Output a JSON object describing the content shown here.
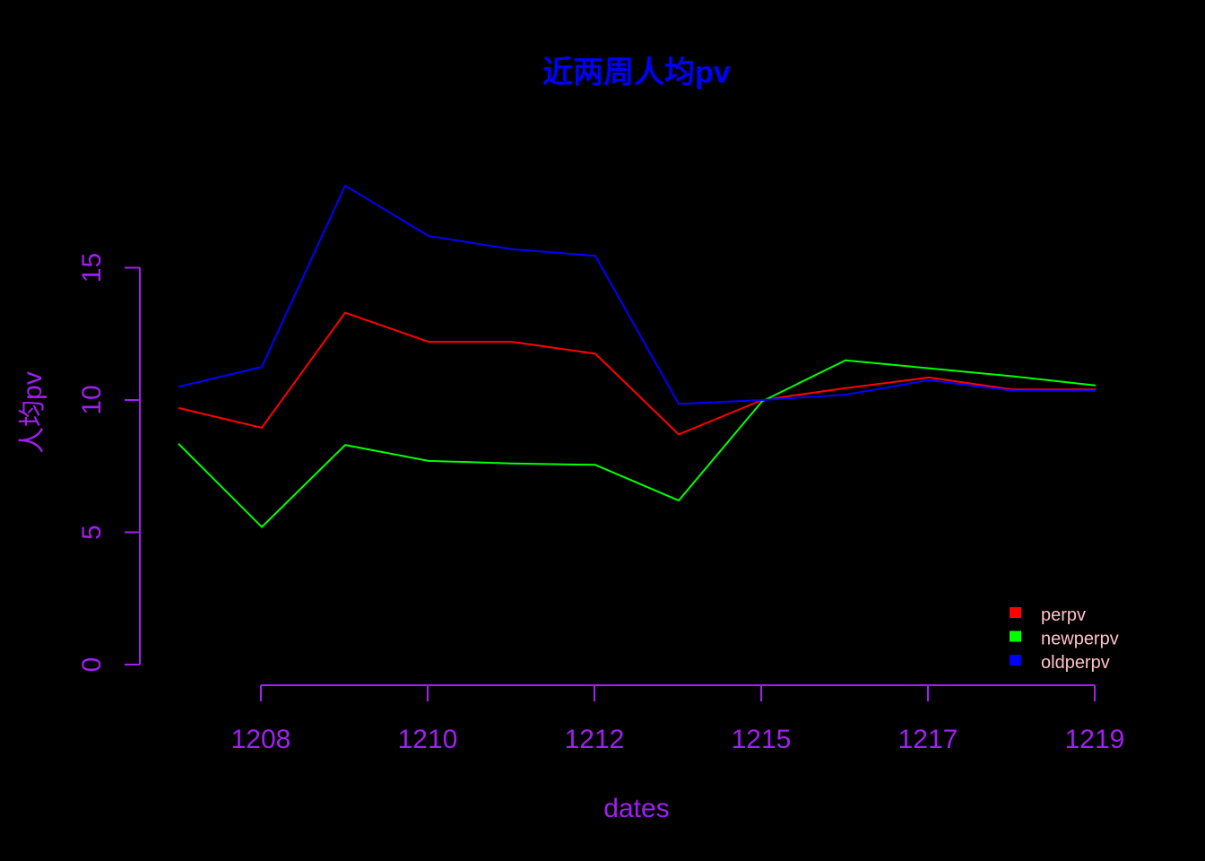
{
  "chart_data": {
    "type": "line",
    "title": "近两周人均pv",
    "xlabel": "dates",
    "ylabel": "人均pv",
    "x_tick_labels": [
      "1208",
      "1210",
      "1212",
      "1215",
      "1217",
      "1219"
    ],
    "y_ticks": [
      0,
      5,
      10,
      15
    ],
    "ylim": [
      0,
      15
    ],
    "grid": false,
    "legend_position": "bottom-right",
    "series": [
      {
        "name": "perpv",
        "color": "#ff0000",
        "values": [
          9.7,
          8.95,
          13.3,
          12.2,
          12.2,
          11.75,
          8.7,
          10.0,
          10.45,
          10.85,
          10.4,
          10.4
        ]
      },
      {
        "name": "newperpv",
        "color": "#00ff00",
        "values": [
          8.35,
          5.2,
          8.3,
          7.7,
          7.6,
          7.55,
          6.2,
          9.95,
          11.5,
          11.2,
          10.9,
          10.55
        ]
      },
      {
        "name": "oldperpv",
        "color": "#0000ff",
        "values": [
          10.5,
          11.25,
          18.1,
          16.2,
          15.7,
          15.45,
          9.85,
          10.0,
          10.2,
          10.75,
          10.35,
          10.35
        ]
      }
    ]
  },
  "colors": {
    "background": "#000000",
    "title": "#0000ff",
    "axis": "#a020f0",
    "legend_text": "#ffc0cb"
  }
}
